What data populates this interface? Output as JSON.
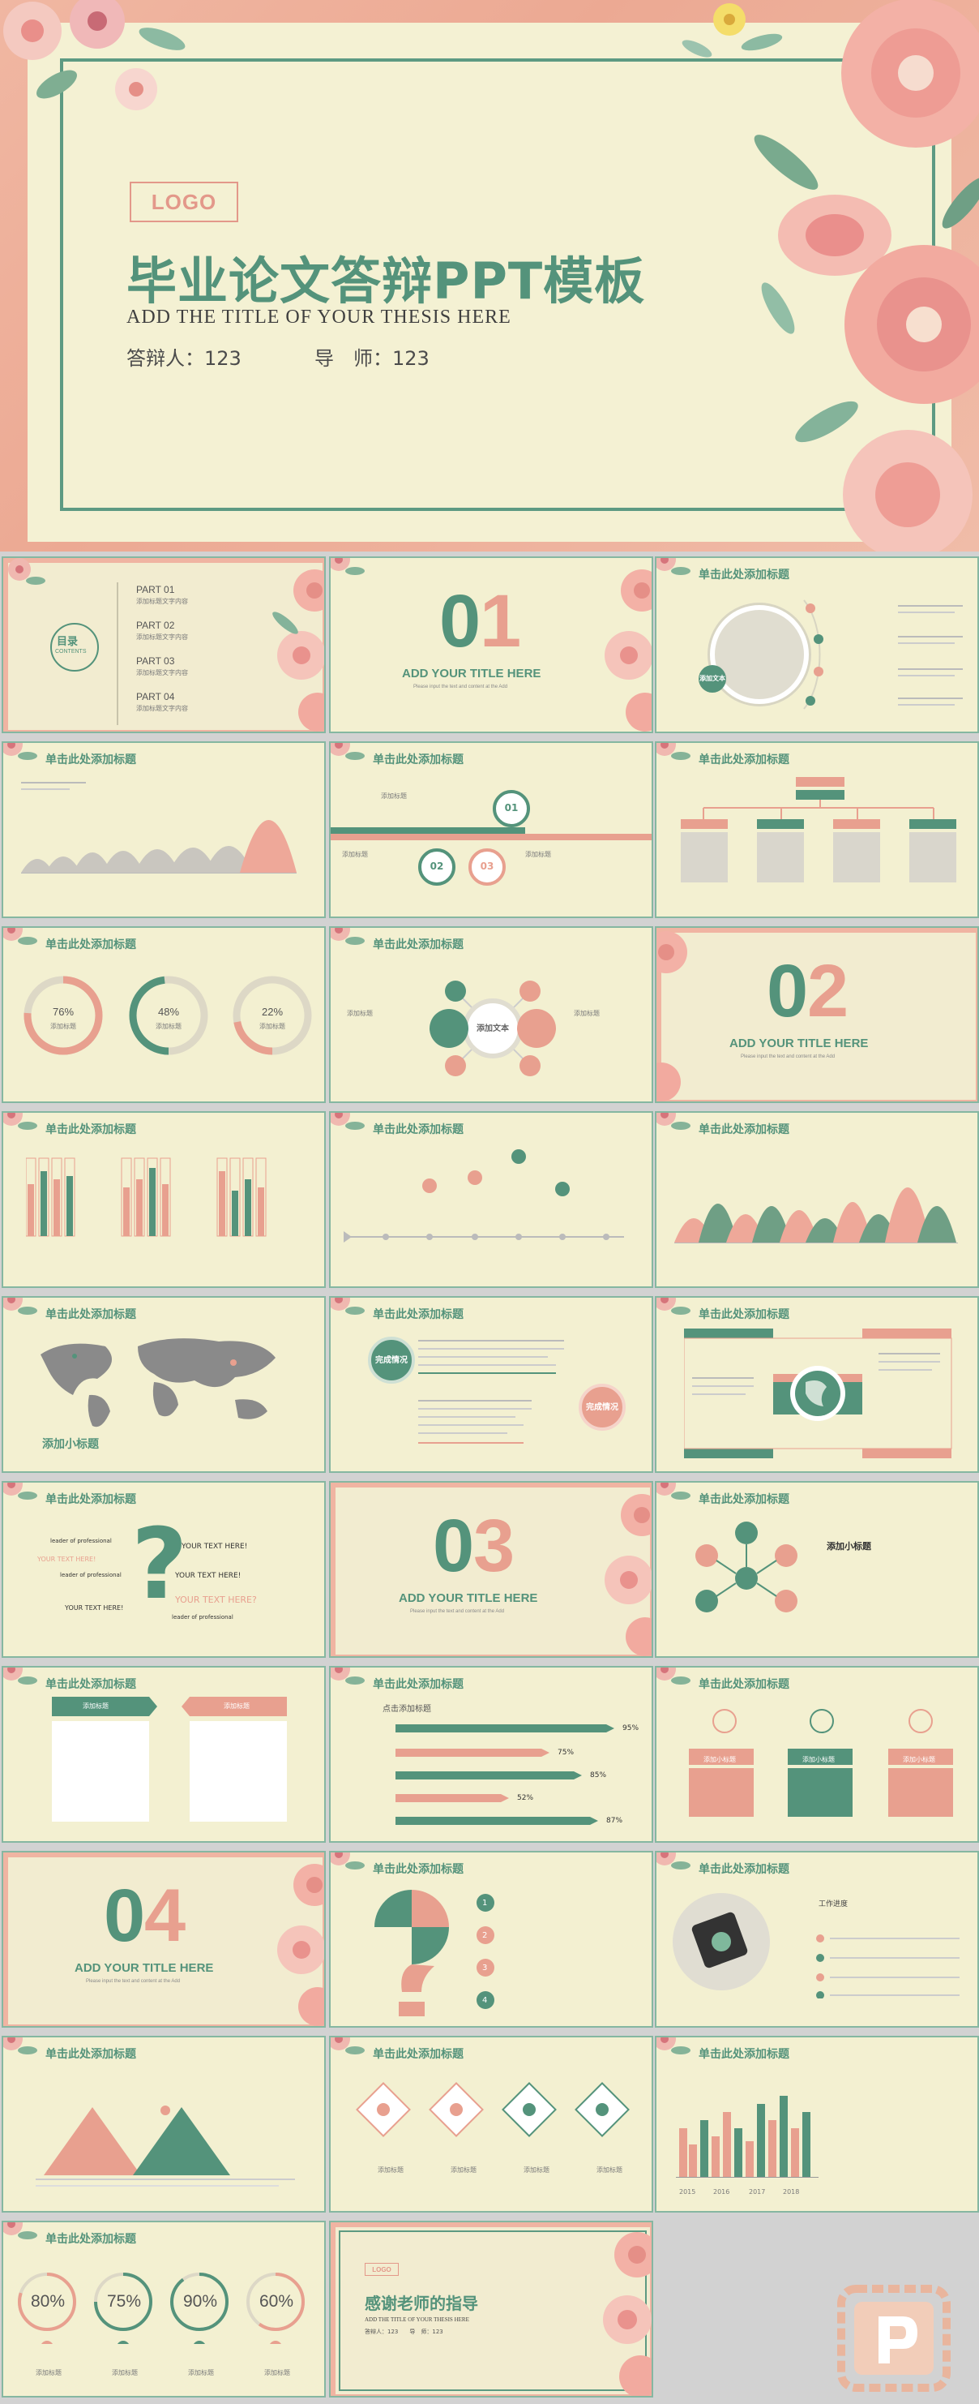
{
  "colors": {
    "green": "#54937b",
    "pink": "#e8a08f",
    "cream": "#f3f0d1",
    "grey": "#c9c6bf"
  },
  "hero": {
    "logo": "LOGO",
    "title": "毕业论文答辩PPT模板",
    "subtitle": "ADD THE TITLE OF YOUR THESIS HERE",
    "defender": "答辩人：123",
    "advisor": "导　师：123"
  },
  "slide_title": "单击此处添加标题",
  "toc": {
    "label": "目录",
    "label_en": "CONTENTS",
    "parts": [
      "PART 01",
      "PART 02",
      "PART 03",
      "PART 04"
    ],
    "part_desc": "添加标题文字内容"
  },
  "sections": [
    {
      "num_a": "0",
      "num_b": "1",
      "title": "ADD YOUR TITLE HERE"
    },
    {
      "num_a": "0",
      "num_b": "2",
      "title": "ADD YOUR TITLE HERE"
    },
    {
      "num_a": "0",
      "num_b": "3",
      "title": "ADD YOUR TITLE HERE"
    },
    {
      "num_a": "0",
      "num_b": "4",
      "title": "ADD YOUR TITLE HERE"
    }
  ],
  "section_desc": "Please input the text and content at the Add",
  "badge_text": "添加文本",
  "add_text": "添加文本",
  "add_title": "添加标题",
  "steps": [
    "01",
    "02",
    "03"
  ],
  "rings": [
    "76%",
    "48%",
    "22%"
  ],
  "ring_label": "添加标题",
  "map_label": "添加小标题",
  "done_a": "完成情况",
  "done_b": "完成情况",
  "bars_label": "点击添加标题",
  "arrow_pcts": [
    "95%",
    "75%",
    "85%",
    "52%",
    "87%"
  ],
  "professional": [
    "leader of professional",
    "YOUR TEXT HERE!",
    "YOUR TEXT HERE?"
  ],
  "small_title": "添加小标题",
  "pie_steps": [
    "1",
    "2",
    "3",
    "4"
  ],
  "work_progress": "工作进度",
  "years": [
    "2015",
    "2016",
    "2017",
    "2018"
  ],
  "final_rings": [
    "80%",
    "75%",
    "90%",
    "60%"
  ],
  "thanks": {
    "logo": "LOGO",
    "title": "感谢老师的指导",
    "subtitle": "ADD THE TITLE OF YOUR THESIS HERE",
    "names": "答辩人：123　　导　师：123"
  }
}
